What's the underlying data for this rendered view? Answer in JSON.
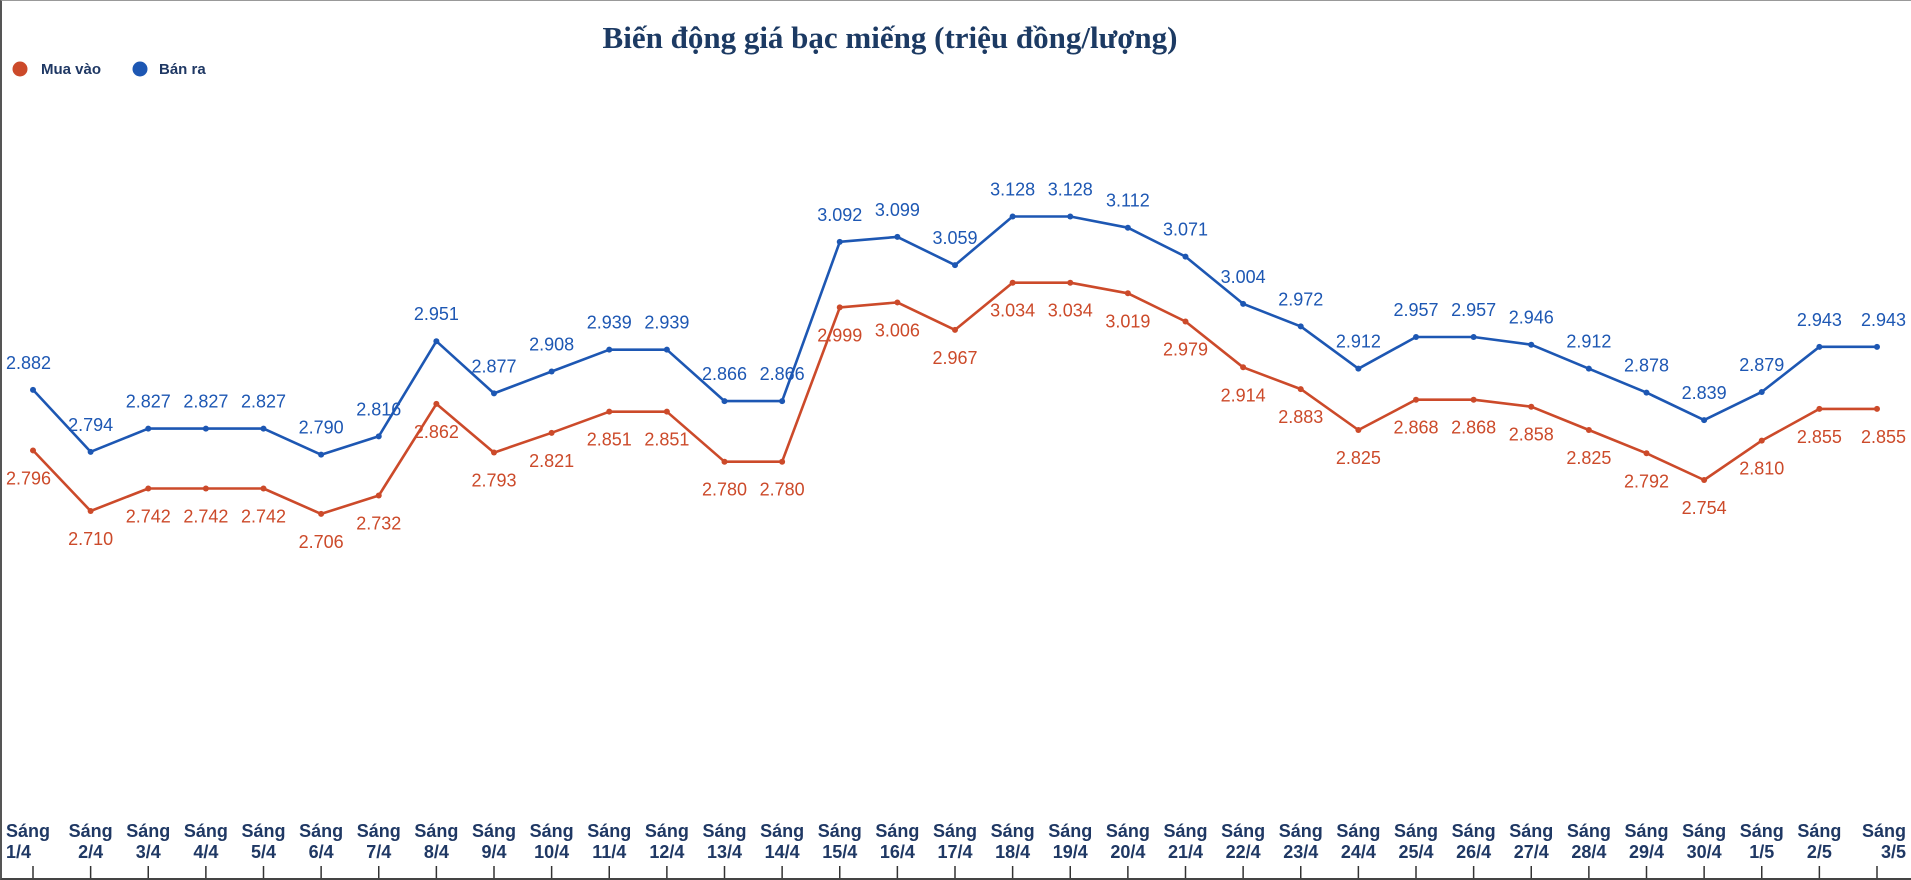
{
  "chart_data": {
    "type": "line",
    "title": "Biến động giá bạc miếng (triệu đồng/lượng)",
    "xlabel": "",
    "ylabel": "",
    "ylim": [
      2.3,
      3.35
    ],
    "grid": false,
    "legend_position": "top-left",
    "categories": [
      [
        "Sáng",
        "1/4"
      ],
      [
        "Sáng",
        "2/4"
      ],
      [
        "Sáng",
        "3/4"
      ],
      [
        "Sáng",
        "4/4"
      ],
      [
        "Sáng",
        "5/4"
      ],
      [
        "Sáng",
        "6/4"
      ],
      [
        "Sáng",
        "7/4"
      ],
      [
        "Sáng",
        "8/4"
      ],
      [
        "Sáng",
        "9/4"
      ],
      [
        "Sáng",
        "10/4"
      ],
      [
        "Sáng",
        "11/4"
      ],
      [
        "Sáng",
        "12/4"
      ],
      [
        "Sáng",
        "13/4"
      ],
      [
        "Sáng",
        "14/4"
      ],
      [
        "Sáng",
        "15/4"
      ],
      [
        "Sáng",
        "16/4"
      ],
      [
        "Sáng",
        "17/4"
      ],
      [
        "Sáng",
        "18/4"
      ],
      [
        "Sáng",
        "19/4"
      ],
      [
        "Sáng",
        "20/4"
      ],
      [
        "Sáng",
        "21/4"
      ],
      [
        "Sáng",
        "22/4"
      ],
      [
        "Sáng",
        "23/4"
      ],
      [
        "Sáng",
        "24/4"
      ],
      [
        "Sáng",
        "25/4"
      ],
      [
        "Sáng",
        "26/4"
      ],
      [
        "Sáng",
        "27/4"
      ],
      [
        "Sáng",
        "28/4"
      ],
      [
        "Sáng",
        "29/4"
      ],
      [
        "Sáng",
        "30/4"
      ],
      [
        "Sáng",
        "1/5"
      ],
      [
        "Sáng",
        "2/5"
      ],
      [
        "Sáng",
        "3/5"
      ]
    ],
    "series": [
      {
        "name": "Mua vào",
        "color": "#cc4a2a",
        "label_position": "below",
        "values": [
          2.796,
          2.71,
          2.742,
          2.742,
          2.742,
          2.706,
          2.732,
          2.862,
          2.793,
          2.821,
          2.851,
          2.851,
          2.78,
          2.78,
          2.999,
          3.006,
          2.967,
          3.034,
          3.034,
          3.019,
          2.979,
          2.914,
          2.883,
          2.825,
          2.868,
          2.868,
          2.858,
          2.825,
          2.792,
          2.754,
          2.81,
          2.855,
          2.855
        ],
        "labels": [
          "2.796",
          "2.710",
          "2.742",
          "2.742",
          "2.742",
          "2.706",
          "2.732",
          "2.862",
          "2.793",
          "2.821",
          "2.851",
          "2.851",
          "2.780",
          "2.780",
          "2.999",
          "3.006",
          "2.967",
          "3.034",
          "3.034",
          "3.019",
          "2.979",
          "2.914",
          "2.883",
          "2.825",
          "2.868",
          "2.868",
          "2.858",
          "2.825",
          "2.792",
          "2.754",
          "2.810",
          "2.855",
          "2.855"
        ]
      },
      {
        "name": "Bán ra",
        "color": "#1d57b3",
        "label_position": "above",
        "values": [
          2.882,
          2.794,
          2.827,
          2.827,
          2.827,
          2.79,
          2.816,
          2.951,
          2.877,
          2.908,
          2.939,
          2.939,
          2.866,
          2.866,
          3.092,
          3.099,
          3.059,
          3.128,
          3.128,
          3.112,
          3.071,
          3.004,
          2.972,
          2.912,
          2.957,
          2.957,
          2.946,
          2.912,
          2.878,
          2.839,
          2.879,
          2.943,
          2.943
        ],
        "labels": [
          "2.882",
          "2.794",
          "2.827",
          "2.827",
          "2.827",
          "2.790",
          "2.816",
          "2.951",
          "2.877",
          "2.908",
          "2.939",
          "2.939",
          "2.866",
          "2.866",
          "3.092",
          "3.099",
          "3.059",
          "3.128",
          "3.128",
          "3.112",
          "3.071",
          "3.004",
          "2.972",
          "2.912",
          "2.957",
          "2.957",
          "2.946",
          "2.912",
          "2.878",
          "2.839",
          "2.879",
          "2.943",
          "2.943"
        ]
      }
    ],
    "title_color": "#1c3a63",
    "axis_label_color": "#1f3864"
  }
}
